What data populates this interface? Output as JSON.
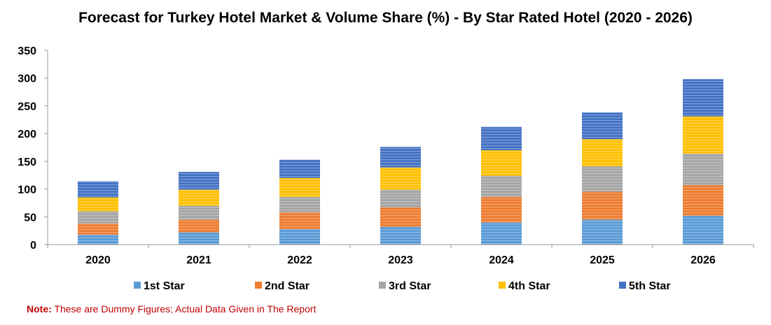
{
  "chart_data": {
    "type": "bar",
    "stacked": true,
    "title": "Forecast for Turkey Hotel Market & Volume Share (%) - By Star Rated Hotel (2020 - 2026)",
    "xlabel": "",
    "ylabel": "",
    "ylim": [
      0,
      350
    ],
    "yticks": [
      0,
      50,
      100,
      150,
      200,
      250,
      300,
      350
    ],
    "grid": false,
    "legend_position": "bottom",
    "categories": [
      "2020",
      "2021",
      "2022",
      "2023",
      "2024",
      "2025",
      "2026"
    ],
    "series": [
      {
        "name": "1st Star",
        "color": "#5b9bd5",
        "values": [
          18,
          22,
          28,
          32,
          40,
          45,
          52
        ]
      },
      {
        "name": "2nd Star",
        "color": "#ed7d31",
        "values": [
          20,
          23,
          30,
          35,
          46,
          50,
          55
        ]
      },
      {
        "name": "3rd Star",
        "color": "#a5a5a5",
        "values": [
          22,
          25,
          28,
          32,
          38,
          46,
          57
        ]
      },
      {
        "name": "4th Star",
        "color": "#ffc000",
        "values": [
          25,
          29,
          34,
          40,
          46,
          49,
          67
        ]
      },
      {
        "name": "5th Star",
        "color": "#4472c4",
        "values": [
          29,
          32,
          33,
          37,
          42,
          48,
          67
        ]
      }
    ]
  },
  "note": {
    "label": "Note:",
    "text": " These are Dummy Figures; Actual Data Given in The Report"
  }
}
